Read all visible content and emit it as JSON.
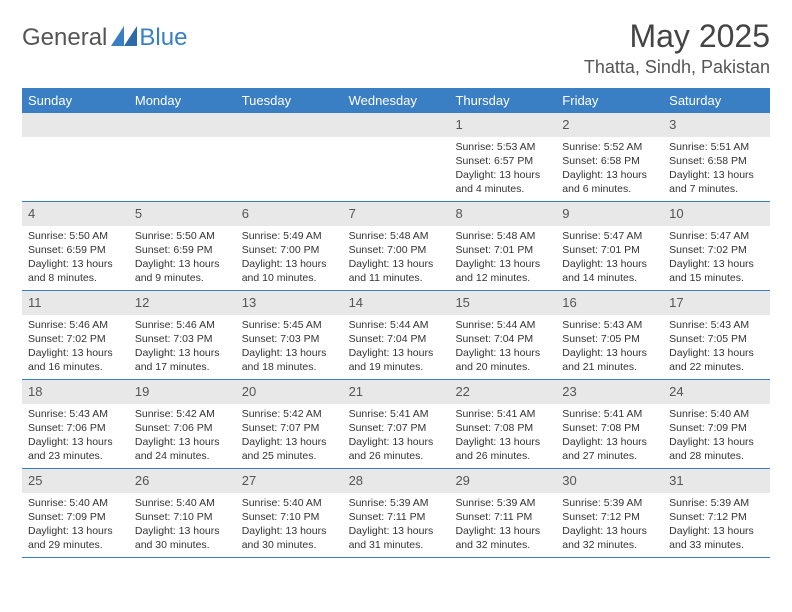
{
  "brand": {
    "part1": "General",
    "part2": "Blue"
  },
  "title": "May 2025",
  "location": "Thatta, Sindh, Pakistan",
  "colors": {
    "header_bg": "#3a7fc4",
    "header_fg": "#ffffff",
    "daynum_bg": "#e8e8e8",
    "row_border": "#3a7fc4",
    "logo_accent": "#3a7fc4",
    "text": "#333333"
  },
  "weekdays": [
    "Sunday",
    "Monday",
    "Tuesday",
    "Wednesday",
    "Thursday",
    "Friday",
    "Saturday"
  ],
  "weeks": [
    [
      {
        "empty": true
      },
      {
        "empty": true
      },
      {
        "empty": true
      },
      {
        "empty": true
      },
      {
        "day": "1",
        "sunrise": "Sunrise: 5:53 AM",
        "sunset": "Sunset: 6:57 PM",
        "daylight": "Daylight: 13 hours and 4 minutes."
      },
      {
        "day": "2",
        "sunrise": "Sunrise: 5:52 AM",
        "sunset": "Sunset: 6:58 PM",
        "daylight": "Daylight: 13 hours and 6 minutes."
      },
      {
        "day": "3",
        "sunrise": "Sunrise: 5:51 AM",
        "sunset": "Sunset: 6:58 PM",
        "daylight": "Daylight: 13 hours and 7 minutes."
      }
    ],
    [
      {
        "day": "4",
        "sunrise": "Sunrise: 5:50 AM",
        "sunset": "Sunset: 6:59 PM",
        "daylight": "Daylight: 13 hours and 8 minutes."
      },
      {
        "day": "5",
        "sunrise": "Sunrise: 5:50 AM",
        "sunset": "Sunset: 6:59 PM",
        "daylight": "Daylight: 13 hours and 9 minutes."
      },
      {
        "day": "6",
        "sunrise": "Sunrise: 5:49 AM",
        "sunset": "Sunset: 7:00 PM",
        "daylight": "Daylight: 13 hours and 10 minutes."
      },
      {
        "day": "7",
        "sunrise": "Sunrise: 5:48 AM",
        "sunset": "Sunset: 7:00 PM",
        "daylight": "Daylight: 13 hours and 11 minutes."
      },
      {
        "day": "8",
        "sunrise": "Sunrise: 5:48 AM",
        "sunset": "Sunset: 7:01 PM",
        "daylight": "Daylight: 13 hours and 12 minutes."
      },
      {
        "day": "9",
        "sunrise": "Sunrise: 5:47 AM",
        "sunset": "Sunset: 7:01 PM",
        "daylight": "Daylight: 13 hours and 14 minutes."
      },
      {
        "day": "10",
        "sunrise": "Sunrise: 5:47 AM",
        "sunset": "Sunset: 7:02 PM",
        "daylight": "Daylight: 13 hours and 15 minutes."
      }
    ],
    [
      {
        "day": "11",
        "sunrise": "Sunrise: 5:46 AM",
        "sunset": "Sunset: 7:02 PM",
        "daylight": "Daylight: 13 hours and 16 minutes."
      },
      {
        "day": "12",
        "sunrise": "Sunrise: 5:46 AM",
        "sunset": "Sunset: 7:03 PM",
        "daylight": "Daylight: 13 hours and 17 minutes."
      },
      {
        "day": "13",
        "sunrise": "Sunrise: 5:45 AM",
        "sunset": "Sunset: 7:03 PM",
        "daylight": "Daylight: 13 hours and 18 minutes."
      },
      {
        "day": "14",
        "sunrise": "Sunrise: 5:44 AM",
        "sunset": "Sunset: 7:04 PM",
        "daylight": "Daylight: 13 hours and 19 minutes."
      },
      {
        "day": "15",
        "sunrise": "Sunrise: 5:44 AM",
        "sunset": "Sunset: 7:04 PM",
        "daylight": "Daylight: 13 hours and 20 minutes."
      },
      {
        "day": "16",
        "sunrise": "Sunrise: 5:43 AM",
        "sunset": "Sunset: 7:05 PM",
        "daylight": "Daylight: 13 hours and 21 minutes."
      },
      {
        "day": "17",
        "sunrise": "Sunrise: 5:43 AM",
        "sunset": "Sunset: 7:05 PM",
        "daylight": "Daylight: 13 hours and 22 minutes."
      }
    ],
    [
      {
        "day": "18",
        "sunrise": "Sunrise: 5:43 AM",
        "sunset": "Sunset: 7:06 PM",
        "daylight": "Daylight: 13 hours and 23 minutes."
      },
      {
        "day": "19",
        "sunrise": "Sunrise: 5:42 AM",
        "sunset": "Sunset: 7:06 PM",
        "daylight": "Daylight: 13 hours and 24 minutes."
      },
      {
        "day": "20",
        "sunrise": "Sunrise: 5:42 AM",
        "sunset": "Sunset: 7:07 PM",
        "daylight": "Daylight: 13 hours and 25 minutes."
      },
      {
        "day": "21",
        "sunrise": "Sunrise: 5:41 AM",
        "sunset": "Sunset: 7:07 PM",
        "daylight": "Daylight: 13 hours and 26 minutes."
      },
      {
        "day": "22",
        "sunrise": "Sunrise: 5:41 AM",
        "sunset": "Sunset: 7:08 PM",
        "daylight": "Daylight: 13 hours and 26 minutes."
      },
      {
        "day": "23",
        "sunrise": "Sunrise: 5:41 AM",
        "sunset": "Sunset: 7:08 PM",
        "daylight": "Daylight: 13 hours and 27 minutes."
      },
      {
        "day": "24",
        "sunrise": "Sunrise: 5:40 AM",
        "sunset": "Sunset: 7:09 PM",
        "daylight": "Daylight: 13 hours and 28 minutes."
      }
    ],
    [
      {
        "day": "25",
        "sunrise": "Sunrise: 5:40 AM",
        "sunset": "Sunset: 7:09 PM",
        "daylight": "Daylight: 13 hours and 29 minutes."
      },
      {
        "day": "26",
        "sunrise": "Sunrise: 5:40 AM",
        "sunset": "Sunset: 7:10 PM",
        "daylight": "Daylight: 13 hours and 30 minutes."
      },
      {
        "day": "27",
        "sunrise": "Sunrise: 5:40 AM",
        "sunset": "Sunset: 7:10 PM",
        "daylight": "Daylight: 13 hours and 30 minutes."
      },
      {
        "day": "28",
        "sunrise": "Sunrise: 5:39 AM",
        "sunset": "Sunset: 7:11 PM",
        "daylight": "Daylight: 13 hours and 31 minutes."
      },
      {
        "day": "29",
        "sunrise": "Sunrise: 5:39 AM",
        "sunset": "Sunset: 7:11 PM",
        "daylight": "Daylight: 13 hours and 32 minutes."
      },
      {
        "day": "30",
        "sunrise": "Sunrise: 5:39 AM",
        "sunset": "Sunset: 7:12 PM",
        "daylight": "Daylight: 13 hours and 32 minutes."
      },
      {
        "day": "31",
        "sunrise": "Sunrise: 5:39 AM",
        "sunset": "Sunset: 7:12 PM",
        "daylight": "Daylight: 13 hours and 33 minutes."
      }
    ]
  ]
}
